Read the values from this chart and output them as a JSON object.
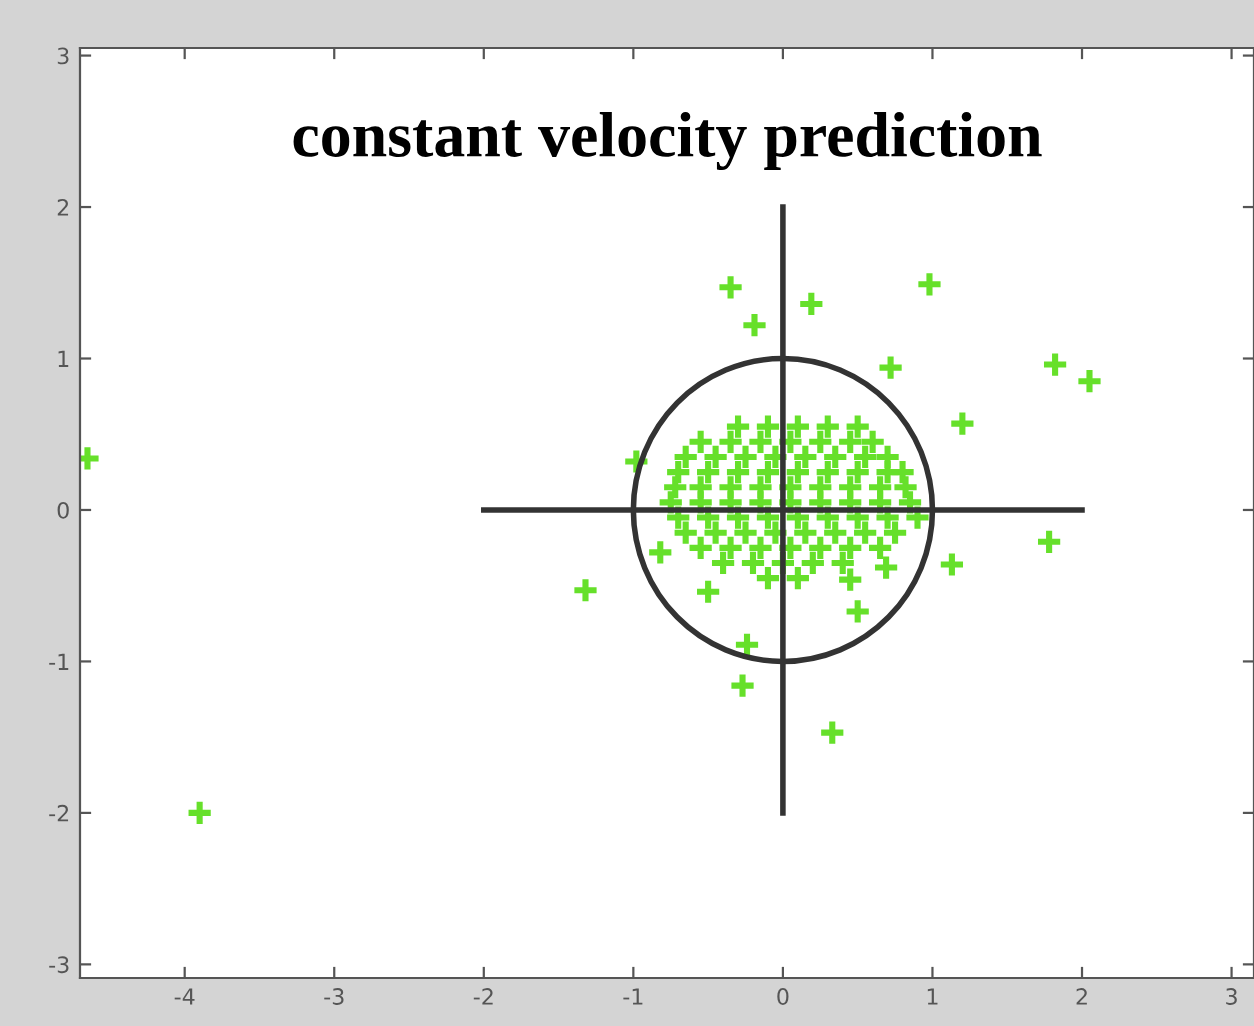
{
  "chart_data": {
    "type": "scatter",
    "title": "constant velocity prediction",
    "xlim": [
      -4.7,
      3.15
    ],
    "ylim": [
      -3.09,
      3.05
    ],
    "xticks": [
      -4,
      -3,
      -2,
      -1,
      0,
      1,
      2,
      3
    ],
    "yticks": [
      -3,
      -2,
      -1,
      0,
      1,
      2,
      3
    ],
    "grid": false,
    "legend": false,
    "marker": "cross",
    "series": [
      {
        "color": "#66e02a",
        "x": [
          -0.3,
          -0.1,
          0.1,
          0.3,
          0.5,
          -0.55,
          -0.35,
          -0.15,
          0.05,
          0.25,
          0.45,
          0.6,
          -0.65,
          -0.45,
          -0.25,
          -0.05,
          0.15,
          0.35,
          0.55,
          0.7,
          -0.7,
          -0.5,
          -0.3,
          -0.1,
          0.1,
          0.3,
          0.5,
          0.7,
          0.8,
          -0.72,
          -0.55,
          -0.35,
          -0.15,
          0.05,
          0.25,
          0.45,
          0.65,
          0.82,
          -0.75,
          -0.55,
          -0.35,
          -0.15,
          0.05,
          0.25,
          0.45,
          0.65,
          0.85,
          -0.7,
          -0.5,
          -0.3,
          -0.1,
          0.1,
          0.3,
          0.5,
          0.7,
          0.9,
          -0.65,
          -0.45,
          -0.25,
          -0.05,
          0.15,
          0.35,
          0.55,
          0.75,
          -0.55,
          -0.35,
          -0.15,
          0.05,
          0.25,
          0.45,
          0.65,
          -0.4,
          -0.2,
          0.0,
          0.2,
          0.4,
          -0.1,
          0.1,
          -0.35,
          -0.19,
          0.19,
          0.98,
          0.72,
          1.82,
          2.05,
          1.2,
          -4.65,
          -0.98,
          -1.32,
          1.78,
          1.13,
          -0.27,
          0.33,
          -3.9,
          -0.24,
          0.45,
          0.5,
          0.69,
          -0.5,
          -0.82
        ],
        "values": [
          0.55,
          0.55,
          0.55,
          0.55,
          0.55,
          0.45,
          0.45,
          0.45,
          0.45,
          0.45,
          0.45,
          0.45,
          0.35,
          0.35,
          0.35,
          0.35,
          0.35,
          0.35,
          0.35,
          0.35,
          0.25,
          0.25,
          0.25,
          0.25,
          0.25,
          0.25,
          0.25,
          0.25,
          0.25,
          0.15,
          0.15,
          0.15,
          0.15,
          0.15,
          0.15,
          0.15,
          0.15,
          0.15,
          0.05,
          0.05,
          0.05,
          0.05,
          0.05,
          0.05,
          0.05,
          0.05,
          0.05,
          -0.05,
          -0.05,
          -0.05,
          -0.05,
          -0.05,
          -0.05,
          -0.05,
          -0.05,
          -0.05,
          -0.15,
          -0.15,
          -0.15,
          -0.15,
          -0.15,
          -0.15,
          -0.15,
          -0.15,
          -0.25,
          -0.25,
          -0.25,
          -0.25,
          -0.25,
          -0.25,
          -0.25,
          -0.35,
          -0.35,
          -0.35,
          -0.35,
          -0.35,
          -0.45,
          -0.45,
          1.47,
          1.22,
          1.36,
          1.49,
          0.94,
          0.96,
          0.85,
          0.57,
          0.34,
          0.32,
          -0.53,
          -0.21,
          -0.36,
          -1.16,
          -1.47,
          -2.0,
          -0.89,
          -0.46,
          -0.67,
          -0.38,
          -0.54,
          -0.28
        ]
      },
      {
        "type": "line",
        "color": "#333333",
        "marker": "none",
        "x": [
          -2,
          2
        ],
        "values": [
          0,
          0
        ]
      },
      {
        "type": "line",
        "color": "#333333",
        "marker": "none",
        "x": [
          0,
          0
        ],
        "values": [
          -2,
          2
        ]
      }
    ]
  }
}
